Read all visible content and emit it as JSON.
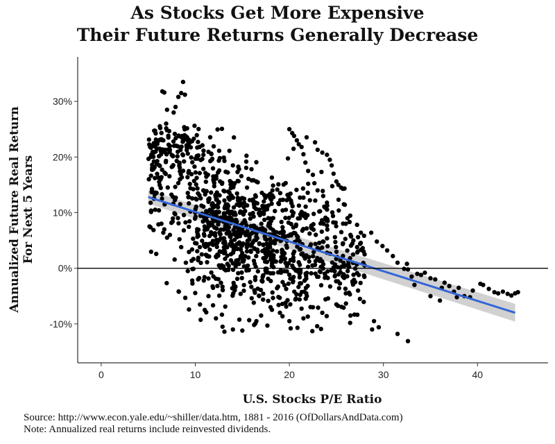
{
  "chart_data": {
    "type": "scatter",
    "title_lines": [
      "As Stocks Get More Expensive",
      "Their Future Returns Generally Decrease"
    ],
    "xlabel": "U.S. Stocks P/E Ratio",
    "ylabel_lines": [
      "Annualized Future Real Return",
      "For Next 5 Years"
    ],
    "xlim": [
      -2.5,
      47.5
    ],
    "ylim": [
      -17,
      38
    ],
    "x_ticks": [
      {
        "value": 0,
        "label": "0"
      },
      {
        "value": 10,
        "label": "10"
      },
      {
        "value": 20,
        "label": "20"
      },
      {
        "value": 30,
        "label": "30"
      },
      {
        "value": 40,
        "label": "40"
      }
    ],
    "y_ticks": [
      {
        "value": -10,
        "label": "-10%"
      },
      {
        "value": 0,
        "label": "0%"
      },
      {
        "value": 10,
        "label": "10%"
      },
      {
        "value": 20,
        "label": "20%"
      },
      {
        "value": 30,
        "label": "30%"
      }
    ],
    "hline": 0,
    "grid": false,
    "trend": {
      "x": [
        5,
        44
      ],
      "y": [
        12.8,
        -8
      ],
      "band_start": [
        11.6,
        14.0
      ],
      "band_end": [
        -6.4,
        -9.6
      ],
      "color": "#3366d6",
      "band_color": "#c9c9c9"
    },
    "point_color": "#000000",
    "clusters": [
      {
        "cx": 14,
        "cy": 7,
        "sx": 2.2,
        "sy": 5.5,
        "n": 360
      },
      {
        "cx": 18.5,
        "cy": 3,
        "sx": 2.5,
        "sy": 6,
        "n": 260
      },
      {
        "cx": 6,
        "cy": 18,
        "sx": 1,
        "sy": 6,
        "n": 90
      },
      {
        "cx": 8.5,
        "cy": 22,
        "sx": 1,
        "sy": 6,
        "n": 80
      },
      {
        "cx": 11,
        "cy": 11,
        "sx": 1.5,
        "sy": 9,
        "n": 150
      },
      {
        "cx": 22,
        "cy": 4,
        "sx": 2.5,
        "sy": 7,
        "n": 160
      },
      {
        "cx": 25.5,
        "cy": 0,
        "sx": 1.5,
        "sy": 4,
        "n": 80
      }
    ],
    "points": [
      [
        5.2,
        21.8
      ],
      [
        5.6,
        22.5
      ],
      [
        5.6,
        20.8
      ],
      [
        5.6,
        19.2
      ],
      [
        5.5,
        18.0
      ],
      [
        6.5,
        31.8
      ],
      [
        6.7,
        31.6
      ],
      [
        8.7,
        33.5
      ],
      [
        8.5,
        31.5
      ],
      [
        8.2,
        30.8
      ],
      [
        7.9,
        29.0
      ],
      [
        7.7,
        28.0
      ],
      [
        8.9,
        31.2
      ],
      [
        7.0,
        28.5
      ],
      [
        6.9,
        26.0
      ],
      [
        6.6,
        23.0
      ],
      [
        6.2,
        21.5
      ],
      [
        6.7,
        7.0
      ],
      [
        7.0,
        5.5
      ],
      [
        7.3,
        6.0
      ],
      [
        6.4,
        8.0
      ],
      [
        6.6,
        6.4
      ],
      [
        8.5,
        3.8
      ],
      [
        9.0,
        1.0
      ],
      [
        9.2,
        -0.5
      ],
      [
        10.3,
        -2.0
      ],
      [
        11.4,
        -5.0
      ],
      [
        12.2,
        -9.0
      ],
      [
        12.9,
        -10.5
      ],
      [
        13.1,
        -11.4
      ],
      [
        10.5,
        -6.5
      ],
      [
        11.0,
        -7.5
      ],
      [
        12.6,
        19.8
      ],
      [
        13.1,
        19.3
      ],
      [
        14.0,
        18.5
      ],
      [
        16.0,
        15.8
      ],
      [
        15.5,
        14.5
      ],
      [
        15.2,
        12.5
      ],
      [
        14.0,
        -11.0
      ],
      [
        15.0,
        -11.2
      ],
      [
        16.5,
        -9.5
      ],
      [
        17.0,
        -8.5
      ],
      [
        18.0,
        -7.0
      ],
      [
        19.0,
        -8.0
      ],
      [
        20.0,
        -9.5
      ],
      [
        21.5,
        -9.0
      ],
      [
        22.5,
        -7.0
      ],
      [
        23.5,
        -8.0
      ],
      [
        20.0,
        25.0
      ],
      [
        20.3,
        24.3
      ],
      [
        20.5,
        23.8
      ],
      [
        20.8,
        23.0
      ],
      [
        21.0,
        22.3
      ],
      [
        21.3,
        21.8
      ],
      [
        21.5,
        20.5
      ],
      [
        21.7,
        19.0
      ],
      [
        22.0,
        17.5
      ],
      [
        22.5,
        16.8
      ],
      [
        23.0,
        21.3
      ],
      [
        23.5,
        20.8
      ],
      [
        24.0,
        20.4
      ],
      [
        24.3,
        19.5
      ],
      [
        24.5,
        18.5
      ],
      [
        24.7,
        17.0
      ],
      [
        23.0,
        14.0
      ],
      [
        23.6,
        13.0
      ],
      [
        24.0,
        11.8
      ],
      [
        25.0,
        15.6
      ],
      [
        25.5,
        14.5
      ],
      [
        25.8,
        11.5
      ],
      [
        26.0,
        8.0
      ],
      [
        26.5,
        6.0
      ],
      [
        26.8,
        5.0
      ],
      [
        27.2,
        3.8
      ],
      [
        27.2,
        7.8
      ],
      [
        27.6,
        6.4
      ],
      [
        27.6,
        3.3
      ],
      [
        27.9,
        3.0
      ],
      [
        28.0,
        2.5
      ],
      [
        27.0,
        -2.5
      ],
      [
        27.3,
        -4.0
      ],
      [
        27.5,
        -5.5
      ],
      [
        26.0,
        -4.5
      ],
      [
        25.0,
        -6.5
      ],
      [
        26.5,
        -8.5
      ],
      [
        28.7,
        6.4
      ],
      [
        29.3,
        4.8
      ],
      [
        29.9,
        4.0
      ],
      [
        30.4,
        3.2
      ],
      [
        31.0,
        2.2
      ],
      [
        31.5,
        1.0
      ],
      [
        32.2,
        -0.1
      ],
      [
        32.6,
        -0.2
      ],
      [
        32.5,
        0.8
      ],
      [
        33.0,
        -1.5
      ],
      [
        33.3,
        -3.0
      ],
      [
        33.6,
        -1.0
      ],
      [
        34.0,
        -1.2
      ],
      [
        34.4,
        -0.8
      ],
      [
        35.0,
        -1.8
      ],
      [
        35.5,
        -2.0
      ],
      [
        36.2,
        -3.5
      ],
      [
        36.5,
        -2.6
      ],
      [
        37.0,
        -3.2
      ],
      [
        37.5,
        -4.2
      ],
      [
        38.0,
        -3.5
      ],
      [
        38.6,
        -5.0
      ],
      [
        39.2,
        -5.2
      ],
      [
        39.5,
        -4.0
      ],
      [
        40.3,
        -2.8
      ],
      [
        40.6,
        -3.0
      ],
      [
        41.2,
        -3.7
      ],
      [
        41.8,
        -4.3
      ],
      [
        42.2,
        -4.5
      ],
      [
        42.7,
        -4.2
      ],
      [
        43.2,
        -4.6
      ],
      [
        43.6,
        -4.9
      ],
      [
        44.0,
        -4.5
      ],
      [
        44.3,
        -4.3
      ],
      [
        32.6,
        -13.1
      ],
      [
        31.5,
        -11.8
      ],
      [
        29.5,
        -10.6
      ],
      [
        28.8,
        -11.0
      ],
      [
        29.0,
        -9.5
      ],
      [
        28.0,
        0.5
      ],
      [
        35.0,
        -5.0
      ],
      [
        36.0,
        -5.8
      ],
      [
        37.8,
        -5.2
      ]
    ]
  },
  "footer": {
    "source": "Source:  http://www.econ.yale.edu/~shiller/data.htm, 1881 - 2016 (OfDollarsAndData.com)",
    "note": "Note:  Annualized real returns include reinvested dividends."
  }
}
